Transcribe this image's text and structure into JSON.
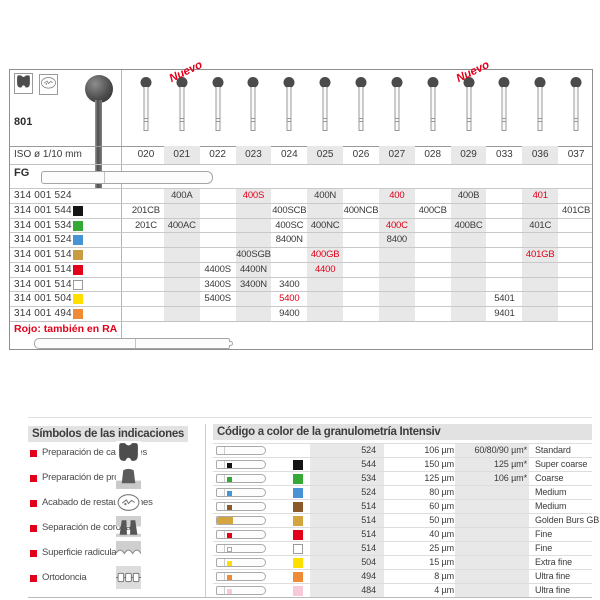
{
  "colors": {
    "accent_red": "#e2001a",
    "column_shading": "#e8e8e8",
    "title_bar": "#e2e2e2",
    "bur_head": "#4b4b4b"
  },
  "catalog": {
    "figure_number": "801",
    "iso_label": "ISO ø 1/10 mm",
    "fg_label": "FG",
    "red_note": "Rojo: también en RA",
    "columns": [
      "020",
      "021",
      "022",
      "023",
      "024",
      "025",
      "026",
      "027",
      "028",
      "029",
      "033",
      "036",
      "037"
    ],
    "shaded_columns": [
      "021",
      "023",
      "025",
      "027",
      "029",
      "036"
    ],
    "new_badges": [
      {
        "label": "Nuevo",
        "column": "021"
      },
      {
        "label": "Nuevo",
        "column": "029"
      }
    ],
    "header_icons": [
      {
        "name": "cavity-prep-icon"
      },
      {
        "name": "restoration-finishing-icon"
      }
    ],
    "rows": [
      {
        "code": "314 001 524",
        "square": null,
        "cells": [
          {
            "col": "021",
            "value": "400A"
          },
          {
            "col": "023",
            "value": "400S",
            "red": true
          },
          {
            "col": "025",
            "value": "400N"
          },
          {
            "col": "027",
            "value": "400",
            "red": true
          },
          {
            "col": "029",
            "value": "400B"
          },
          {
            "col": "036",
            "value": "401",
            "red": true
          }
        ]
      },
      {
        "code": "314 001 544",
        "square": {
          "color": "#141414"
        },
        "cells": [
          {
            "col": "020",
            "value": "201CB"
          },
          {
            "col": "024",
            "value": "400SCB"
          },
          {
            "col": "026",
            "value": "400NCB"
          },
          {
            "col": "028",
            "value": "400CB"
          },
          {
            "col": "037",
            "value": "401CB"
          }
        ]
      },
      {
        "code": "314 001 534",
        "square": {
          "color": "#35a936"
        },
        "cells": [
          {
            "col": "020",
            "value": "201C"
          },
          {
            "col": "021",
            "value": "400AC"
          },
          {
            "col": "024",
            "value": "400SC"
          },
          {
            "col": "025",
            "value": "400NC"
          },
          {
            "col": "027",
            "value": "400C",
            "red": true
          },
          {
            "col": "029",
            "value": "400BC"
          },
          {
            "col": "036",
            "value": "401C"
          }
        ]
      },
      {
        "code": "314 001 524",
        "square": {
          "color": "#4793d6"
        },
        "cells": [
          {
            "col": "024",
            "value": "8400N"
          },
          {
            "col": "027",
            "value": "8400"
          }
        ]
      },
      {
        "code": "314 001 514",
        "square": {
          "color": "#c99b43"
        },
        "cells": [
          {
            "col": "023",
            "value": "400SGB"
          },
          {
            "col": "025",
            "value": "400GB",
            "red": true
          },
          {
            "col": "036",
            "value": "401GB",
            "red": true
          }
        ]
      },
      {
        "code": "314 001 514",
        "square": {
          "color": "#e2001a"
        },
        "cells": [
          {
            "col": "022",
            "value": "4400S"
          },
          {
            "col": "023",
            "value": "4400N"
          },
          {
            "col": "025",
            "value": "4400",
            "red": true
          }
        ]
      },
      {
        "code": "314 001 514",
        "square": {
          "color": "#ffffff",
          "outlined": true
        },
        "cells": [
          {
            "col": "022",
            "value": "3400S"
          },
          {
            "col": "023",
            "value": "3400N"
          },
          {
            "col": "024",
            "value": "3400"
          }
        ]
      },
      {
        "code": "314 001 504",
        "square": {
          "color": "#ffdf00"
        },
        "cells": [
          {
            "col": "022",
            "value": "5400S"
          },
          {
            "col": "024",
            "value": "5400",
            "red": true
          },
          {
            "col": "033",
            "value": "5401"
          }
        ]
      },
      {
        "code": "314 001 494",
        "square": {
          "color": "#ef8b36"
        },
        "cells": [
          {
            "col": "024",
            "value": "9400"
          },
          {
            "col": "033",
            "value": "9401"
          }
        ]
      }
    ]
  },
  "symbols_section": {
    "title": "Símbolos de las indicaciones",
    "items": [
      {
        "label": "Preparación de cavidades",
        "icon": "cavity-prep-icon"
      },
      {
        "label": "Preparación de prótesis",
        "icon": "prosthesis-prep-icon"
      },
      {
        "label": "Acabado de restauraciones",
        "icon": "restoration-finishing-icon"
      },
      {
        "label": "Separación de coronas",
        "icon": "crown-separation-icon"
      },
      {
        "label": "Superficie radicular",
        "icon": "root-surface-icon"
      },
      {
        "label": "Ortodoncia",
        "icon": "orthodontics-icon"
      }
    ]
  },
  "granulometry_section": {
    "title": "Código a color de la granulometría Intensiv",
    "rows": [
      {
        "code": "524",
        "grit": "106 µm",
        "alt": "60/80/90 µm*",
        "label": "Standard",
        "color": null
      },
      {
        "code": "544",
        "grit": "150 µm",
        "alt": "125 µm*",
        "label": "Super coarse",
        "color": "#141414"
      },
      {
        "code": "534",
        "grit": "125 µm",
        "alt": "106 µm*",
        "label": "Coarse",
        "color": "#35a936"
      },
      {
        "code": "524",
        "grit": "80 µm",
        "alt": "",
        "label": "Medium",
        "color": "#4793d6"
      },
      {
        "code": "514",
        "grit": "60 µm",
        "alt": "",
        "label": "Medium",
        "color": "#8a5a2b"
      },
      {
        "code": "514",
        "grit": "50 µm",
        "alt": "",
        "label": "Golden Burs GB",
        "color": "#d4a43f",
        "golden": true
      },
      {
        "code": "514",
        "grit": "40 µm",
        "alt": "",
        "label": "Fine",
        "color": "#e2001a"
      },
      {
        "code": "514",
        "grit": "25 µm",
        "alt": "",
        "label": "Fine",
        "color": "#ffffff",
        "outlined": true
      },
      {
        "code": "504",
        "grit": "15 µm",
        "alt": "",
        "label": "Extra fine",
        "color": "#ffdf00"
      },
      {
        "code": "494",
        "grit": "8 µm",
        "alt": "",
        "label": "Ultra fine",
        "color": "#ef8b36"
      },
      {
        "code": "484",
        "grit": "4 µm",
        "alt": "",
        "label": "Ultra fine",
        "color": "#f7c9d9"
      }
    ]
  }
}
